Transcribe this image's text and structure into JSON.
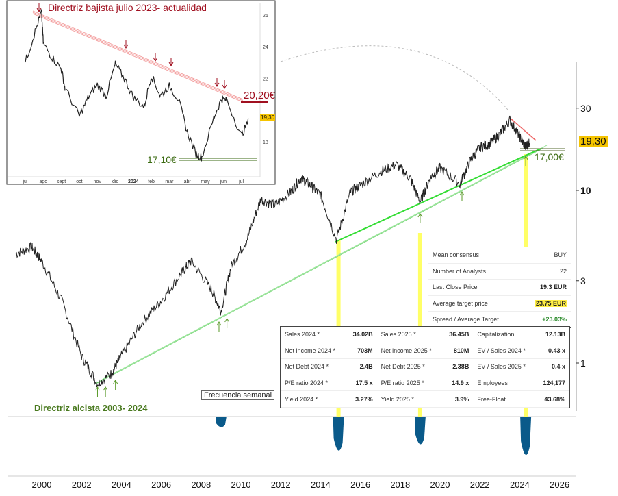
{
  "chart_data": [
    {
      "type": "line",
      "title": "",
      "scale": "log",
      "note": "Frecuencia semanal",
      "yticks": [
        1,
        3,
        10,
        30
      ],
      "xticks": [
        2000,
        2002,
        2004,
        2006,
        2008,
        2010,
        2012,
        2014,
        2016,
        2018,
        2020,
        2022,
        2024,
        2026
      ],
      "last_price_label": "19,30",
      "series": [
        {
          "name": "price",
          "x": [
            1998.7,
            1999.5,
            2000,
            2001,
            2002,
            2002.8,
            2003.5,
            2004,
            2005,
            2006,
            2007,
            2007.5,
            2008.5,
            2009,
            2009.5,
            2010.3,
            2011,
            2011.7,
            2012.5,
            2013,
            2013.5,
            2014,
            2014.8,
            2015.5,
            2016,
            2017,
            2017.8,
            2018.5,
            2019,
            2019.5,
            2020,
            2021,
            2021.5,
            2022,
            2022.5,
            2023,
            2023.5,
            2024,
            2024.3,
            2024.5
          ],
          "y": [
            4.3,
            4.7,
            3.9,
            2.3,
            1.1,
            0.76,
            0.87,
            1.1,
            1.7,
            2.3,
            3.3,
            3.9,
            2.7,
            2.0,
            3.6,
            5.2,
            8.9,
            8.2,
            9.8,
            11.8,
            10.7,
            9.4,
            5.2,
            9.8,
            10.7,
            12.9,
            14.1,
            11.8,
            8.6,
            11.8,
            13.5,
            10.9,
            14.8,
            17.8,
            18.6,
            21.2,
            25.6,
            20.4,
            17.8,
            19.3
          ]
        }
      ],
      "annotations": {
        "uptrend_label": "Directriz alcista 2003- 2024",
        "support_label": "17,00€"
      },
      "lower_panel": {
        "events_years": [
          2009,
          2014.9,
          2019,
          2024.3
        ],
        "depth": [
          0.25,
          0.8,
          0.65,
          0.9
        ]
      }
    },
    {
      "type": "line",
      "title": "Directriz bajista julio 2023- actualidad",
      "yticks": [
        18,
        22,
        24,
        26
      ],
      "xticks": [
        "jul",
        "ago",
        "sept",
        "oct",
        "nov",
        "dic",
        "2024",
        "feb",
        "mar",
        "abr",
        "may",
        "jun",
        "jul"
      ],
      "last_price_label": "19,30",
      "resistance_label": "20,20€",
      "support_label": "17,10€",
      "series": [
        {
          "name": "price",
          "x_month": [
            0,
            0.5,
            0.9,
            1.0,
            1.5,
            2.0,
            2.2,
            3.0,
            3.5,
            4.0,
            4.5,
            5.0,
            5.5,
            6.0,
            6.6,
            7.0,
            7.5,
            8.0,
            8.5,
            9.0,
            9.5,
            9.8,
            10.5,
            10.9,
            11.2,
            12.0,
            12.4
          ],
          "y": [
            23.0,
            24.8,
            26.2,
            24.2,
            23.3,
            22.6,
            21.4,
            19.6,
            20.8,
            21.6,
            20.9,
            22.9,
            22.0,
            20.8,
            20.2,
            22.2,
            20.9,
            21.5,
            20.7,
            18.6,
            17.2,
            17.0,
            19.6,
            20.7,
            20.6,
            18.4,
            19.3
          ]
        }
      ]
    }
  ],
  "consensus": {
    "rows": [
      {
        "label": "Mean consensus",
        "value": "BUY"
      },
      {
        "label": "Number of Analysts",
        "value": "22"
      },
      {
        "label": "Last Close Price",
        "value": "19.3 EUR"
      },
      {
        "label": "Average target price",
        "value": "23.75 EUR"
      },
      {
        "label": "Spread / Average Target",
        "value": "+23.03%"
      }
    ]
  },
  "fundamentals": {
    "rows": [
      [
        {
          "label": "Sales 2024 *",
          "value": "34.02B"
        },
        {
          "label": "Sales 2025 *",
          "value": "36.45B"
        },
        {
          "label": "Capitalization",
          "value": "12.13B"
        }
      ],
      [
        {
          "label": "Net income 2024 *",
          "value": "703M"
        },
        {
          "label": "Net income 2025 *",
          "value": "810M"
        },
        {
          "label": "EV / Sales 2024 *",
          "value": "0.43 x"
        }
      ],
      [
        {
          "label": "Net Debt 2024 *",
          "value": "2.4B"
        },
        {
          "label": "Net Debt 2025 *",
          "value": "2.38B"
        },
        {
          "label": "EV / Sales 2025 *",
          "value": "0.4 x"
        }
      ],
      [
        {
          "label": "P/E ratio 2024 *",
          "value": "17.5 x"
        },
        {
          "label": "P/E ratio 2025 *",
          "value": "14.9 x"
        },
        {
          "label": "Employees",
          "value": "124,177"
        }
      ],
      [
        {
          "label": "Yield 2024 *",
          "value": "3.27%"
        },
        {
          "label": "Yield 2025 *",
          "value": "3.9%"
        },
        {
          "label": "Free-Float",
          "value": "43.68%"
        }
      ]
    ]
  },
  "colors": {
    "price": "#222222",
    "uptrend": "#33dd33",
    "downtrend": "#ee8888",
    "marker": "#ffff66",
    "drawdown": "#0a5a8a",
    "highlight": "#f5c400"
  }
}
